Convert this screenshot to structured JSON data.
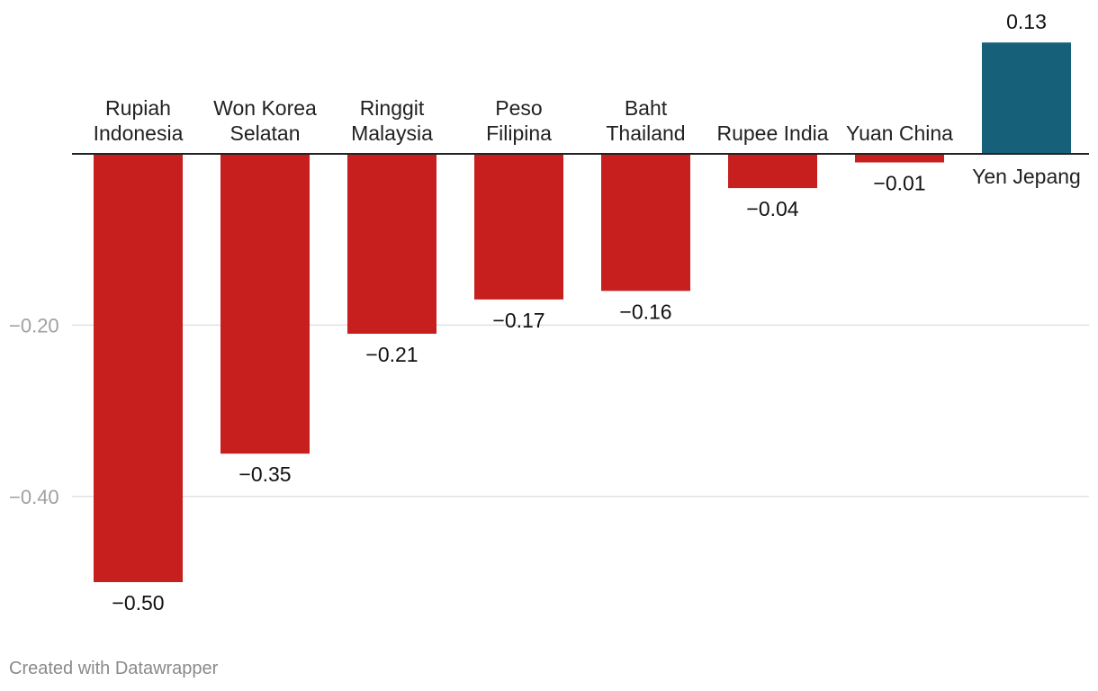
{
  "chart_data": {
    "type": "bar",
    "categories": [
      [
        "Rupiah",
        "Indonesia"
      ],
      [
        "Won Korea",
        "Selatan"
      ],
      [
        "Ringgit",
        "Malaysia"
      ],
      [
        "Peso",
        "Filipina"
      ],
      [
        "Baht",
        "Thailand"
      ],
      [
        "Rupee India"
      ],
      [
        "Yuan China"
      ],
      [
        "Yen Jepang"
      ]
    ],
    "values": [
      -0.5,
      -0.35,
      -0.21,
      -0.17,
      -0.16,
      -0.04,
      -0.01,
      0.13
    ],
    "value_labels": [
      "−0.50",
      "−0.35",
      "−0.21",
      "−0.17",
      "−0.16",
      "−0.04",
      "−0.01",
      "0.13"
    ],
    "yticks": [
      -0.2,
      -0.4
    ],
    "ytick_labels": [
      "−0.20",
      "−0.40"
    ],
    "ylim": [
      -0.5,
      0.13
    ],
    "grid": true,
    "colors": {
      "negative": "#c71e1e",
      "positive": "#16607a",
      "grid": "#e2e2e2",
      "zero_line": "#222222"
    }
  },
  "footer": {
    "credit": "Created with Datawrapper"
  }
}
